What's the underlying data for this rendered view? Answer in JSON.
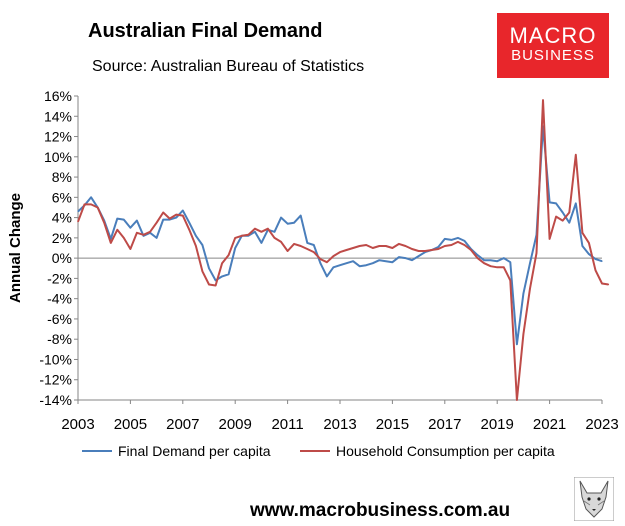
{
  "title": "Australian Final Demand",
  "subtitle": "Source: Australian Bureau of Statistics",
  "logo": {
    "line1": "MACRO",
    "line2": "BUSINESS"
  },
  "footer": "www.macrobusiness.com.au",
  "colors": {
    "final_demand": "#4a7ebb",
    "household": "#be4b48",
    "brand": "#e8262b"
  },
  "chart_data": {
    "type": "line",
    "ylabel": "Annual Change",
    "xlabel": "",
    "ylim": [
      -14,
      16
    ],
    "xlim": [
      2003,
      2023
    ],
    "yticks": [
      -14,
      -12,
      -10,
      -8,
      -6,
      -4,
      -2,
      0,
      2,
      4,
      6,
      8,
      10,
      12,
      14,
      16
    ],
    "ytick_labels": [
      "-14%",
      "-12%",
      "-10%",
      "-8%",
      "-6%",
      "-4%",
      "-2%",
      "0%",
      "2%",
      "4%",
      "6%",
      "8%",
      "10%",
      "12%",
      "14%",
      "16%"
    ],
    "xticks": [
      2003,
      2005,
      2007,
      2009,
      2011,
      2013,
      2015,
      2017,
      2019,
      2021,
      2023
    ],
    "xtick_labels": [
      "2003",
      "2005",
      "2007",
      "2009",
      "2011",
      "2013",
      "2015",
      "2017",
      "2019",
      "2021",
      "2023"
    ],
    "legend_position": "bottom",
    "grid": false,
    "series": [
      {
        "name": "Final Demand per capita",
        "color": "#4a7ebb",
        "points": [
          [
            2003.0,
            4.6
          ],
          [
            2003.25,
            5.2
          ],
          [
            2003.5,
            6.0
          ],
          [
            2003.75,
            5.0
          ],
          [
            2004.0,
            3.7
          ],
          [
            2004.25,
            1.9
          ],
          [
            2004.5,
            3.9
          ],
          [
            2004.75,
            3.8
          ],
          [
            2005.0,
            3.0
          ],
          [
            2005.25,
            3.7
          ],
          [
            2005.5,
            2.2
          ],
          [
            2005.75,
            2.5
          ],
          [
            2006.0,
            2.0
          ],
          [
            2006.25,
            3.8
          ],
          [
            2006.5,
            3.8
          ],
          [
            2006.75,
            4.0
          ],
          [
            2007.0,
            4.7
          ],
          [
            2007.25,
            3.5
          ],
          [
            2007.5,
            2.2
          ],
          [
            2007.75,
            1.3
          ],
          [
            2008.0,
            -1.0
          ],
          [
            2008.25,
            -2.2
          ],
          [
            2008.5,
            -1.8
          ],
          [
            2008.75,
            -1.6
          ],
          [
            2009.0,
            1.0
          ],
          [
            2009.25,
            2.2
          ],
          [
            2009.5,
            2.2
          ],
          [
            2009.75,
            2.6
          ],
          [
            2010.0,
            1.5
          ],
          [
            2010.25,
            2.8
          ],
          [
            2010.5,
            2.6
          ],
          [
            2010.75,
            4.0
          ],
          [
            2011.0,
            3.4
          ],
          [
            2011.25,
            3.5
          ],
          [
            2011.5,
            4.2
          ],
          [
            2011.75,
            1.5
          ],
          [
            2012.0,
            1.3
          ],
          [
            2012.25,
            -0.5
          ],
          [
            2012.5,
            -1.8
          ],
          [
            2012.75,
            -0.9
          ],
          [
            2013.0,
            -0.7
          ],
          [
            2013.25,
            -0.5
          ],
          [
            2013.5,
            -0.3
          ],
          [
            2013.75,
            -0.8
          ],
          [
            2014.0,
            -0.7
          ],
          [
            2014.25,
            -0.5
          ],
          [
            2014.5,
            -0.2
          ],
          [
            2014.75,
            -0.3
          ],
          [
            2015.0,
            -0.4
          ],
          [
            2015.25,
            0.1
          ],
          [
            2015.5,
            0.0
          ],
          [
            2015.75,
            -0.2
          ],
          [
            2016.0,
            0.2
          ],
          [
            2016.25,
            0.6
          ],
          [
            2016.5,
            0.8
          ],
          [
            2016.75,
            1.1
          ],
          [
            2017.0,
            1.9
          ],
          [
            2017.25,
            1.8
          ],
          [
            2017.5,
            2.0
          ],
          [
            2017.75,
            1.7
          ],
          [
            2018.0,
            0.9
          ],
          [
            2018.25,
            0.3
          ],
          [
            2018.5,
            -0.2
          ],
          [
            2018.75,
            -0.2
          ],
          [
            2019.0,
            -0.3
          ],
          [
            2019.25,
            0.0
          ],
          [
            2019.5,
            -0.4
          ],
          [
            2019.75,
            -8.5
          ],
          [
            2020.0,
            -3.5
          ],
          [
            2020.25,
            -0.5
          ],
          [
            2020.5,
            2.3
          ],
          [
            2020.75,
            13.0
          ],
          [
            2021.0,
            5.5
          ],
          [
            2021.25,
            5.4
          ],
          [
            2021.5,
            4.5
          ],
          [
            2021.75,
            3.5
          ],
          [
            2022.0,
            5.4
          ],
          [
            2022.25,
            1.2
          ],
          [
            2022.5,
            0.4
          ],
          [
            2022.75,
            -0.1
          ],
          [
            2023.0,
            -0.3
          ]
        ]
      },
      {
        "name": "Household Consumption per capita",
        "color": "#be4b48",
        "points": [
          [
            2003.0,
            3.6
          ],
          [
            2003.25,
            5.3
          ],
          [
            2003.5,
            5.3
          ],
          [
            2003.75,
            5.0
          ],
          [
            2004.0,
            3.5
          ],
          [
            2004.25,
            1.5
          ],
          [
            2004.5,
            2.8
          ],
          [
            2004.75,
            2.0
          ],
          [
            2005.0,
            0.9
          ],
          [
            2005.25,
            2.5
          ],
          [
            2005.5,
            2.3
          ],
          [
            2005.75,
            2.6
          ],
          [
            2006.0,
            3.5
          ],
          [
            2006.25,
            4.5
          ],
          [
            2006.5,
            3.9
          ],
          [
            2006.75,
            4.3
          ],
          [
            2007.0,
            4.2
          ],
          [
            2007.25,
            2.8
          ],
          [
            2007.5,
            1.2
          ],
          [
            2007.75,
            -1.3
          ],
          [
            2008.0,
            -2.6
          ],
          [
            2008.25,
            -2.7
          ],
          [
            2008.5,
            -0.5
          ],
          [
            2008.75,
            0.3
          ],
          [
            2009.0,
            2.0
          ],
          [
            2009.25,
            2.2
          ],
          [
            2009.5,
            2.3
          ],
          [
            2009.75,
            2.9
          ],
          [
            2010.0,
            2.6
          ],
          [
            2010.25,
            2.9
          ],
          [
            2010.5,
            2.0
          ],
          [
            2010.75,
            1.6
          ],
          [
            2011.0,
            0.7
          ],
          [
            2011.25,
            1.4
          ],
          [
            2011.5,
            1.2
          ],
          [
            2011.75,
            0.9
          ],
          [
            2012.0,
            0.6
          ],
          [
            2012.25,
            -0.1
          ],
          [
            2012.5,
            -0.4
          ],
          [
            2012.75,
            0.2
          ],
          [
            2013.0,
            0.6
          ],
          [
            2013.25,
            0.8
          ],
          [
            2013.5,
            1.0
          ],
          [
            2013.75,
            1.2
          ],
          [
            2014.0,
            1.3
          ],
          [
            2014.25,
            1.0
          ],
          [
            2014.5,
            1.2
          ],
          [
            2014.75,
            1.2
          ],
          [
            2015.0,
            1.0
          ],
          [
            2015.25,
            1.4
          ],
          [
            2015.5,
            1.2
          ],
          [
            2015.75,
            0.9
          ],
          [
            2016.0,
            0.7
          ],
          [
            2016.25,
            0.7
          ],
          [
            2016.5,
            0.8
          ],
          [
            2016.75,
            0.9
          ],
          [
            2017.0,
            1.2
          ],
          [
            2017.25,
            1.3
          ],
          [
            2017.5,
            1.6
          ],
          [
            2017.75,
            1.3
          ],
          [
            2018.0,
            0.8
          ],
          [
            2018.25,
            0.0
          ],
          [
            2018.5,
            -0.5
          ],
          [
            2018.75,
            -0.8
          ],
          [
            2019.0,
            -0.9
          ],
          [
            2019.25,
            -0.9
          ],
          [
            2019.5,
            -2.2
          ],
          [
            2019.75,
            -14.0
          ],
          [
            2020.0,
            -7.5
          ],
          [
            2020.25,
            -3.0
          ],
          [
            2020.5,
            0.5
          ],
          [
            2020.75,
            15.6
          ],
          [
            2021.0,
            1.9
          ],
          [
            2021.25,
            4.1
          ],
          [
            2021.5,
            3.7
          ],
          [
            2021.75,
            4.5
          ],
          [
            2022.0,
            10.2
          ],
          [
            2022.25,
            2.5
          ],
          [
            2022.5,
            1.5
          ],
          [
            2022.75,
            -1.2
          ],
          [
            2023.0,
            -2.5
          ],
          [
            2023.25,
            -2.6
          ]
        ]
      }
    ]
  }
}
